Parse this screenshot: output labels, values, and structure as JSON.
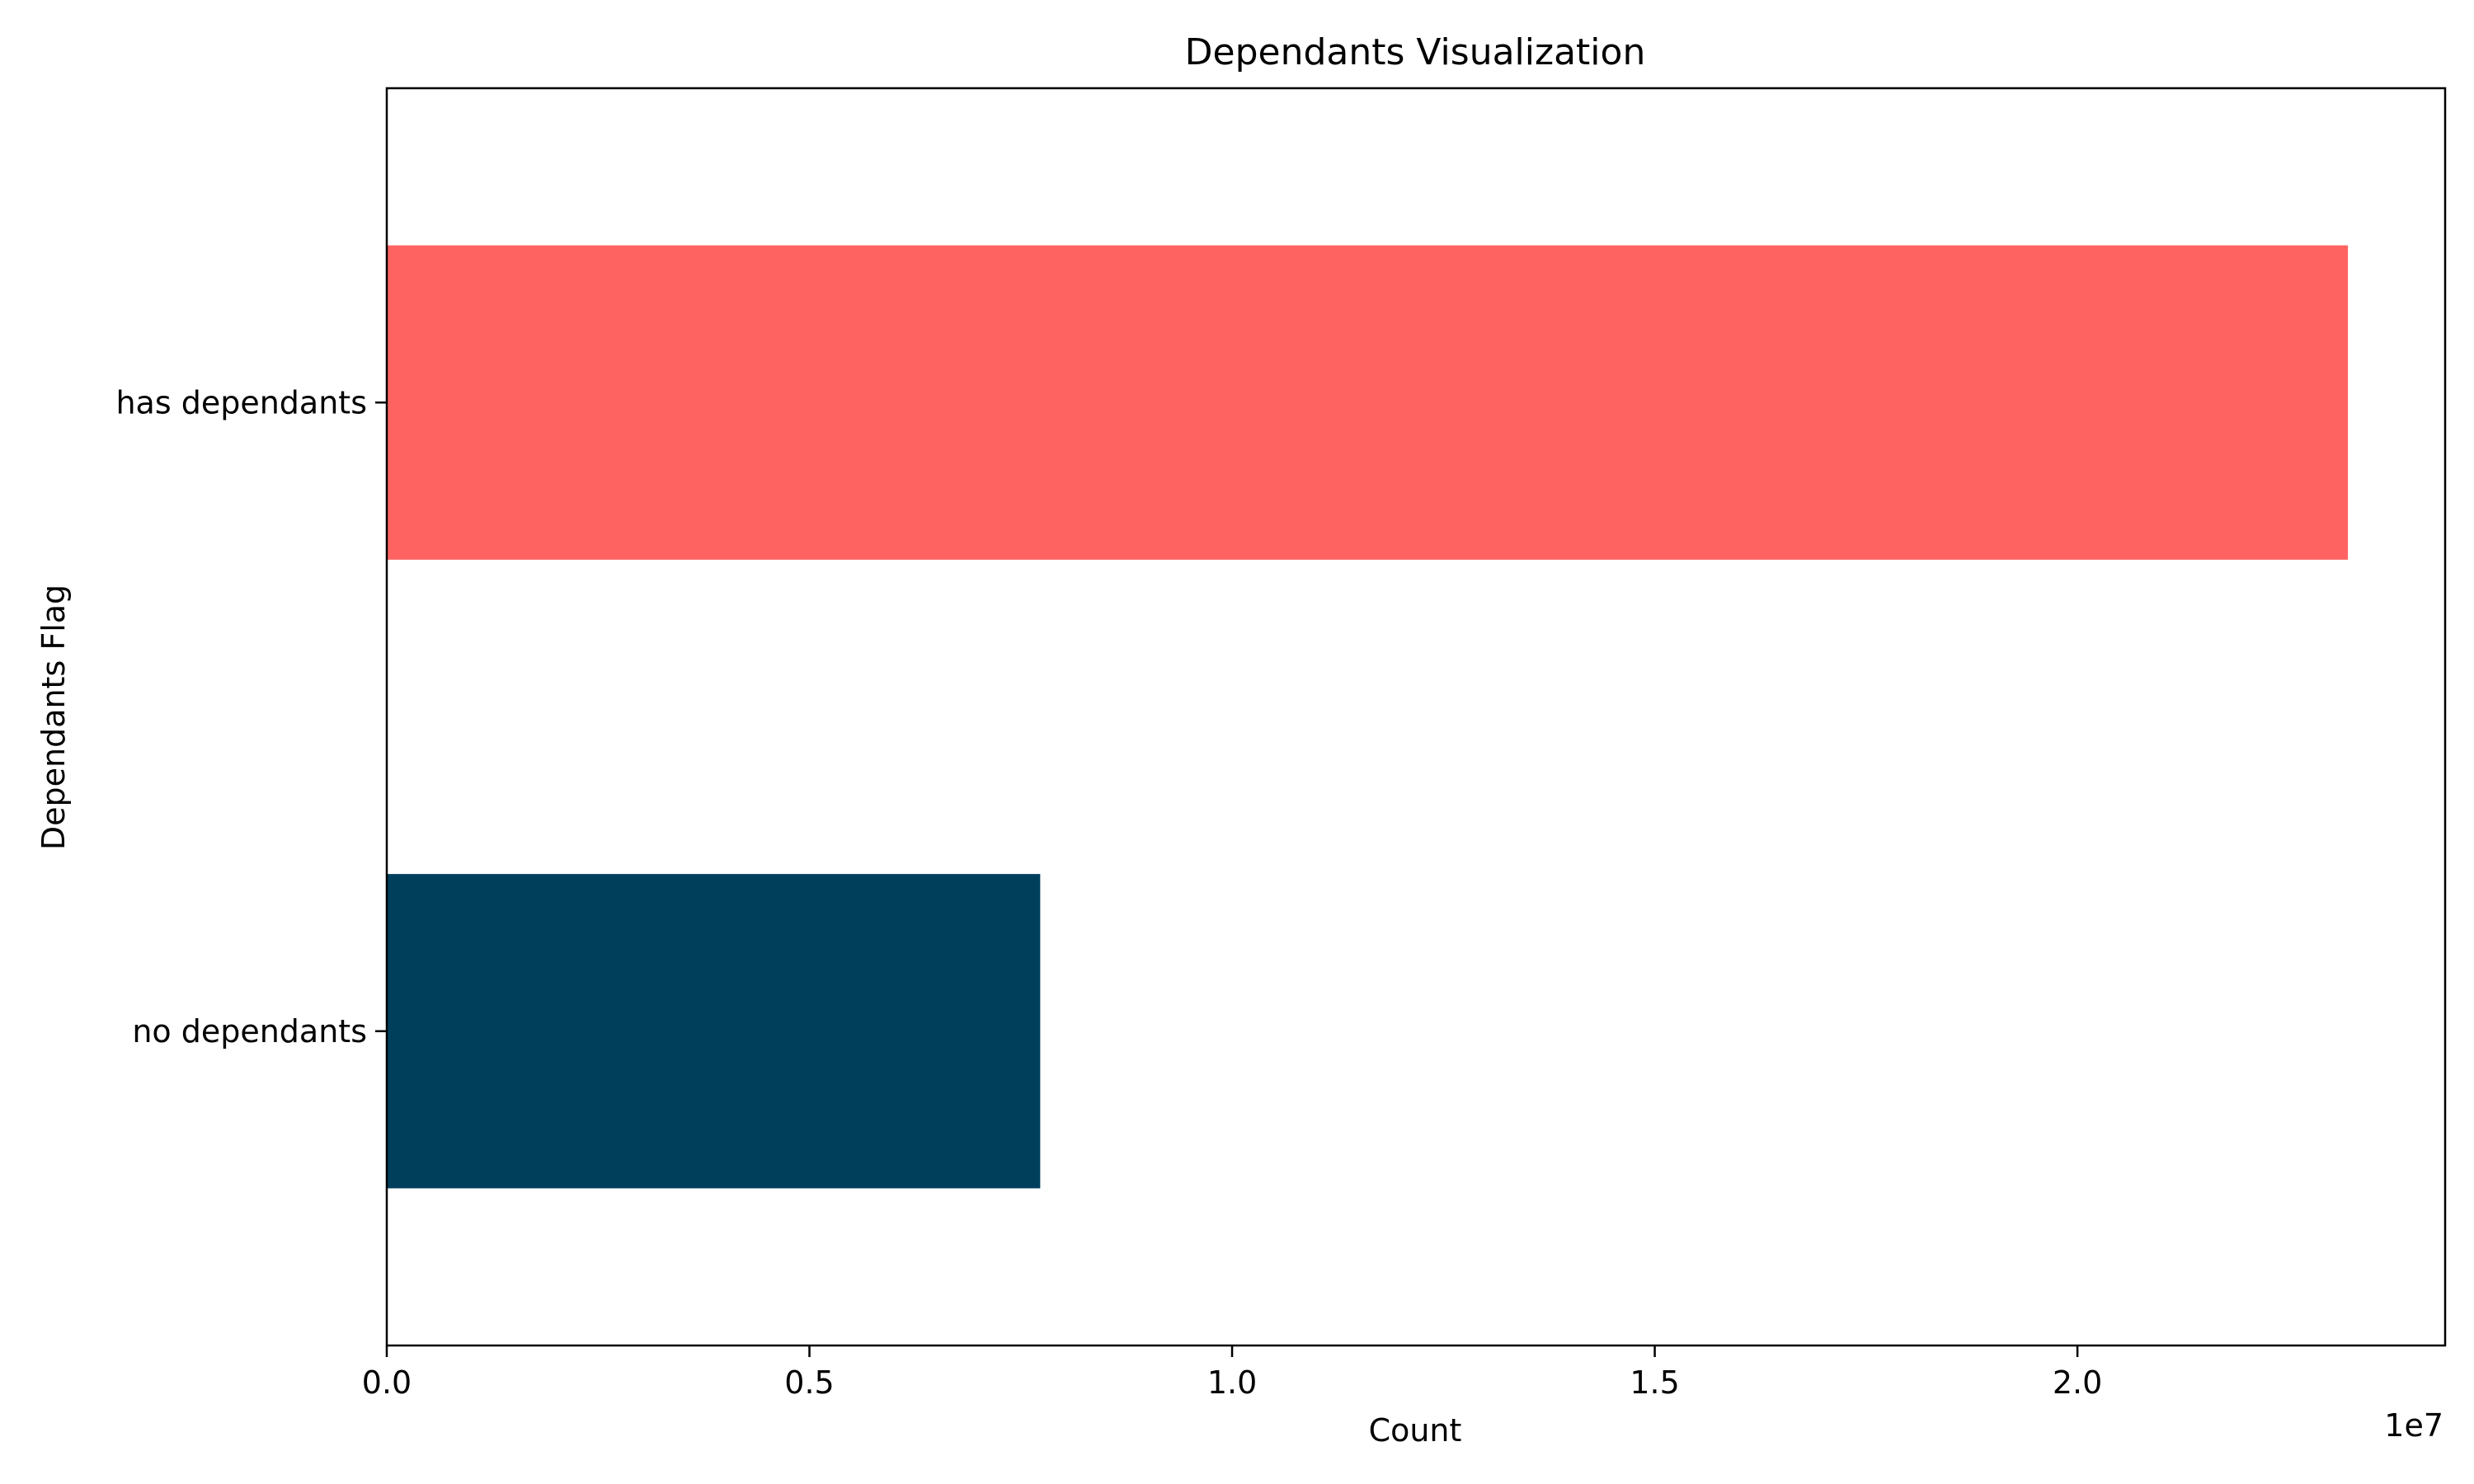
{
  "chart_data": {
    "type": "bar",
    "orientation": "horizontal",
    "title": "Dependants Visualization",
    "xlabel": "Count",
    "ylabel": "Dependants Flag",
    "categories": [
      "has dependants",
      "no dependants"
    ],
    "values": [
      23200000,
      7730000
    ],
    "xlim": [
      0,
      24350000
    ],
    "x_ticks": [
      0,
      5000000,
      10000000,
      15000000,
      20000000
    ],
    "x_tick_labels": [
      "0.0",
      "0.5",
      "1.0",
      "1.5",
      "2.0"
    ],
    "offset_text": "1e7",
    "colors": [
      "#ff6361",
      "#003f5c"
    ],
    "grid": false,
    "legend": "none"
  }
}
